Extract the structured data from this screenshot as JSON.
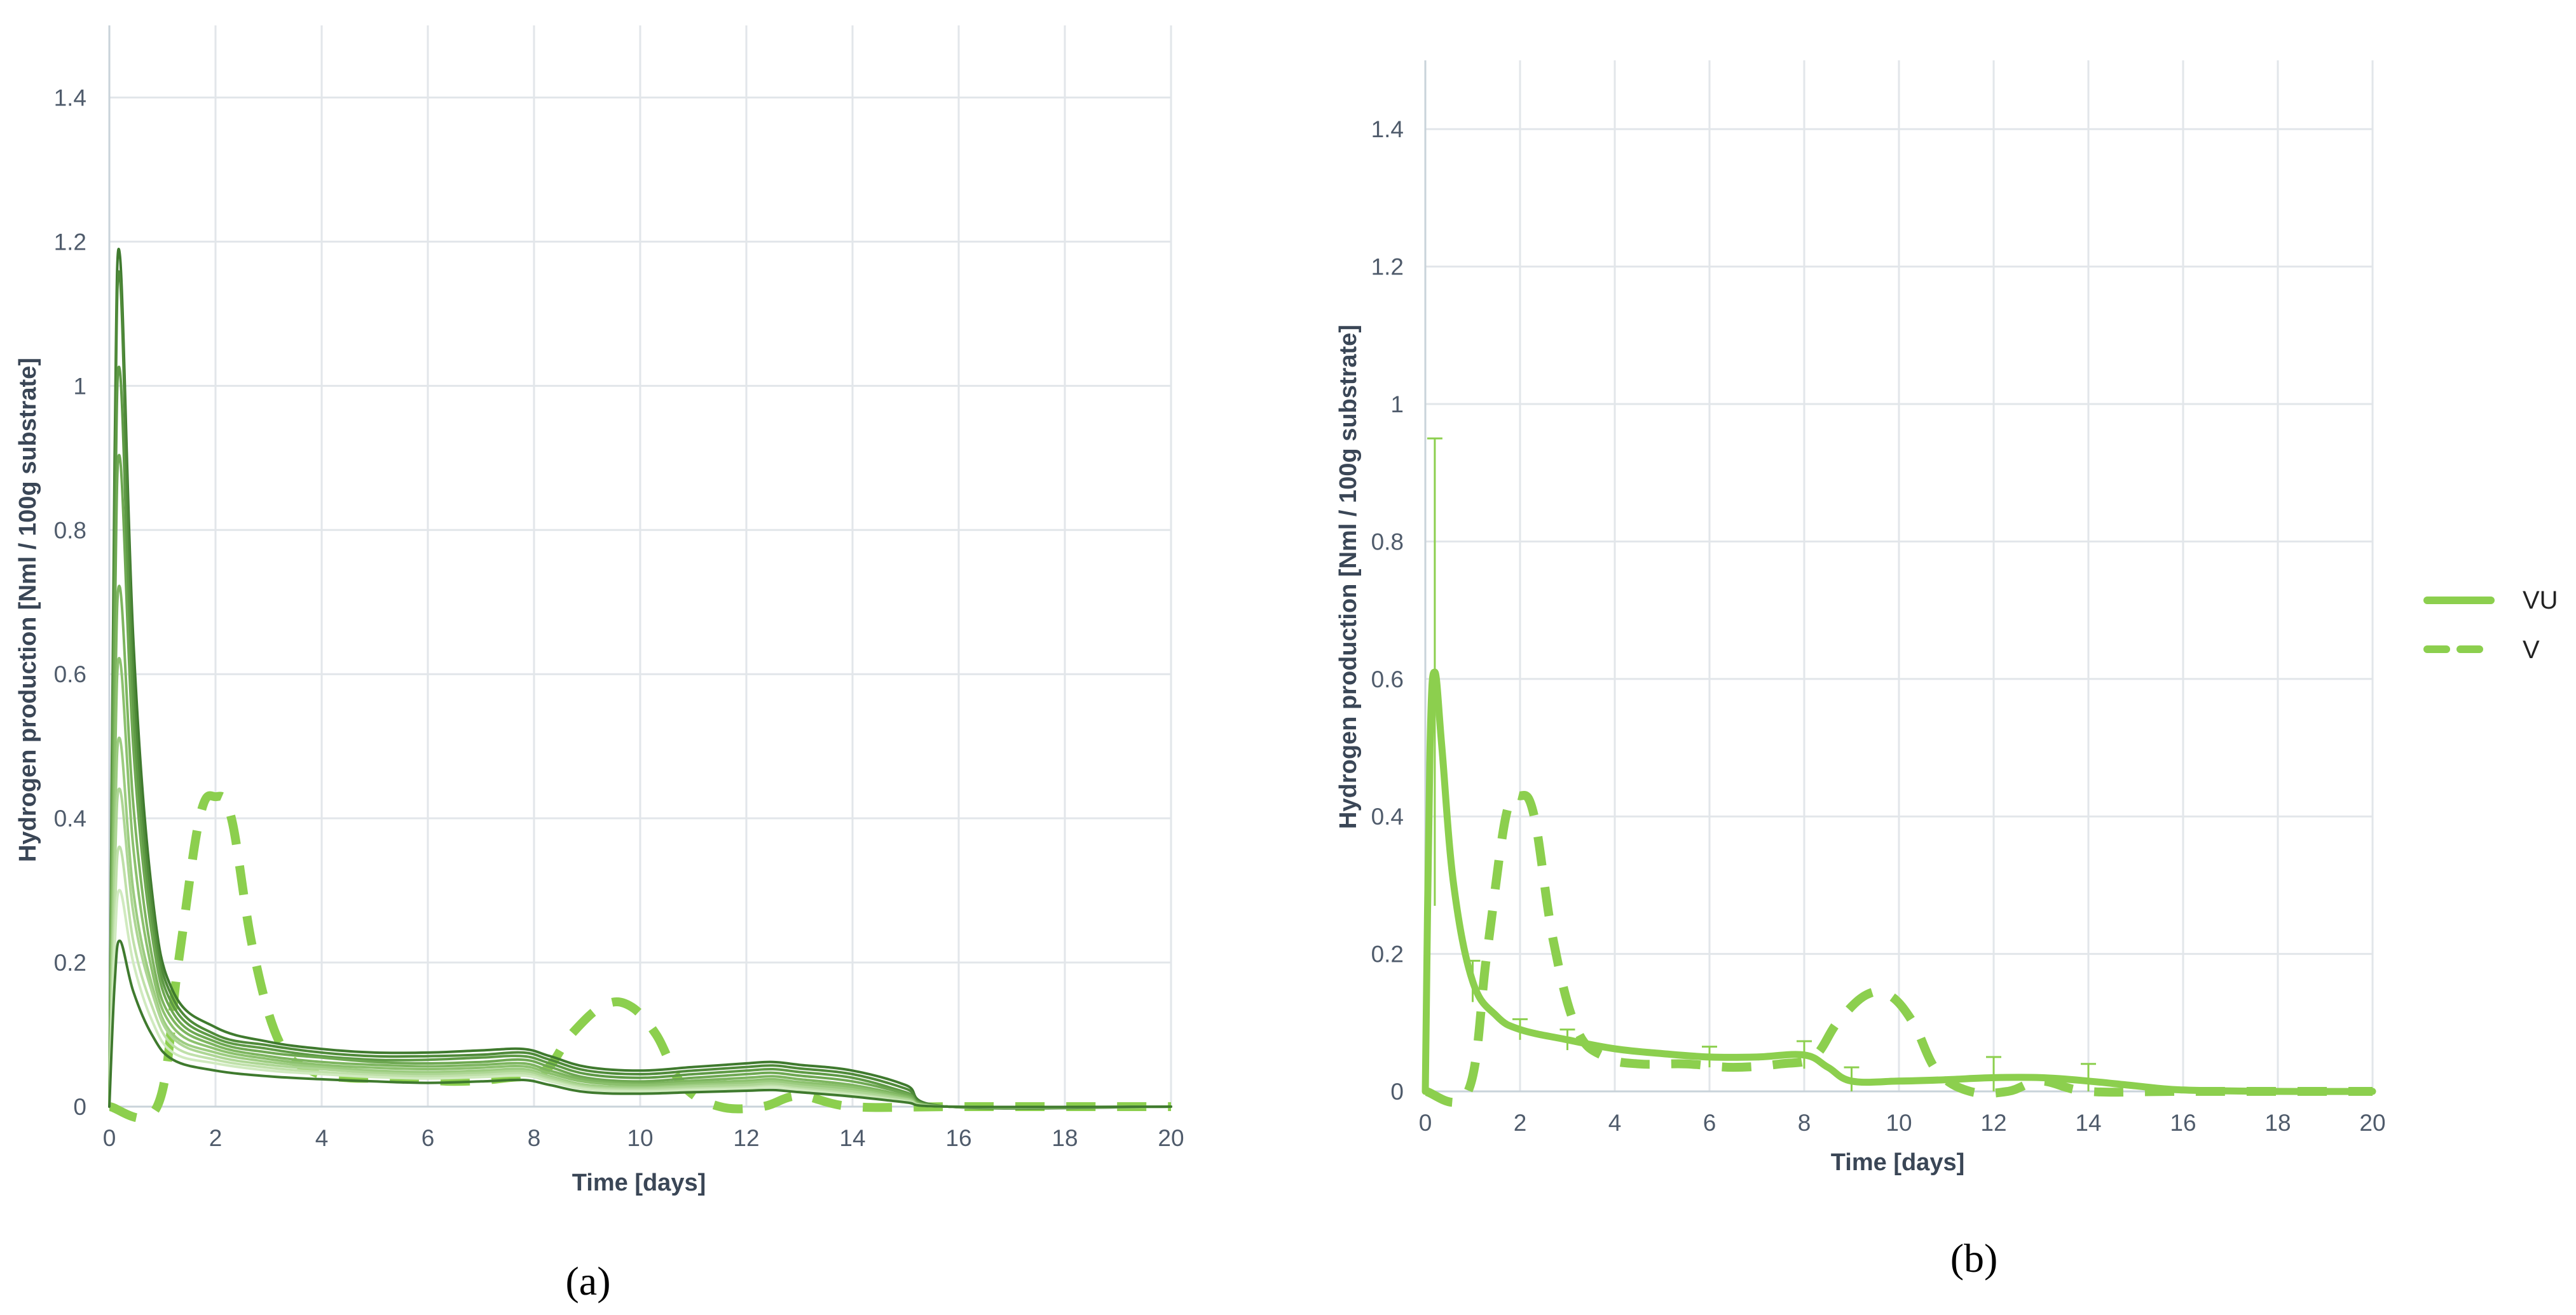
{
  "colors": {
    "accent": "#8ccf4e",
    "grid": "#e2e6ea",
    "axis": "#c9d3da",
    "tick_text": "#4f5b6b",
    "title_text": "#3a4656",
    "individual_series_shades": [
      "#3f7a2e",
      "#4f8a39",
      "#5e9a45",
      "#6ea852",
      "#7db55f",
      "#8cc16e",
      "#9ccc80",
      "#add694",
      "#bfe0a9",
      "#d0eabf"
    ]
  },
  "chart_data": [
    {
      "panel_label": "(a)",
      "type": "line",
      "title": "",
      "xlabel": "Time [days]",
      "ylabel": "Hydrogen production [Nml / 100g substrate]",
      "xlim": [
        0,
        20
      ],
      "ylim": [
        0,
        1.5
      ],
      "x_ticks": [
        0,
        2,
        4,
        6,
        8,
        10,
        12,
        14,
        16,
        18,
        20
      ],
      "y_ticks": [
        0,
        0.2,
        0.4,
        0.6,
        0.8,
        1,
        1.2,
        1.4
      ],
      "x_tick_labels": [
        "0",
        "2",
        "4",
        "6",
        "8",
        "10",
        "12",
        "14",
        "16",
        "18",
        "20"
      ],
      "y_tick_labels": [
        "0",
        "0.2",
        "0.4",
        "0.6",
        "0.8",
        "1",
        "1.2",
        "1.4"
      ],
      "grid": true,
      "series": [
        {
          "style": "dashed",
          "color": "#8ccf4e",
          "x": [
            0,
            0.9,
            1.3,
            1.7,
            2.0,
            2.3,
            2.7,
            3.2,
            3.8,
            4.5,
            5.5,
            6.5,
            7.5,
            8.2,
            8.7,
            9.3,
            9.8,
            10.3,
            10.8,
            11.5,
            12.3,
            13,
            14,
            16,
            20
          ],
          "y": [
            0,
            0,
            0.2,
            0.4,
            0.43,
            0.4,
            0.22,
            0.09,
            0.05,
            0.04,
            0.04,
            0.035,
            0.04,
            0.05,
            0.1,
            0.14,
            0.14,
            0.1,
            0.03,
            0,
            0,
            0.015,
            0,
            0,
            0
          ]
        },
        {
          "x": [
            0,
            0.1,
            0.2,
            0.45,
            0.8,
            1.2,
            2,
            3,
            4,
            5,
            6,
            7,
            7.8,
            8.3,
            9,
            10,
            11,
            12,
            12.5,
            13,
            14,
            15,
            15.8,
            20
          ],
          "y": [
            0,
            0.9,
            1.18,
            0.65,
            0.3,
            0.16,
            0.11,
            0.09,
            0.08,
            0.075,
            0.075,
            0.078,
            0.08,
            0.07,
            0.055,
            0.05,
            0.055,
            0.06,
            0.062,
            0.058,
            0.05,
            0.03,
            0,
            0
          ]
        },
        {
          "x": [
            0,
            0.1,
            0.2,
            0.45,
            0.8,
            1.2,
            2,
            3,
            4,
            5,
            6,
            7,
            7.8,
            8.3,
            9,
            10,
            11,
            12,
            12.5,
            13,
            14,
            15,
            15.8,
            20
          ],
          "y": [
            0,
            0.85,
            1.15,
            0.6,
            0.28,
            0.15,
            0.1,
            0.085,
            0.075,
            0.07,
            0.07,
            0.072,
            0.075,
            0.065,
            0.05,
            0.045,
            0.05,
            0.055,
            0.057,
            0.053,
            0.045,
            0.025,
            0,
            0
          ]
        },
        {
          "x": [
            0,
            0.1,
            0.2,
            0.45,
            0.8,
            1.2,
            2,
            3,
            4,
            5,
            6,
            7,
            7.8,
            8.3,
            9,
            10,
            11,
            12,
            12.5,
            13,
            14,
            15,
            15.8,
            20
          ],
          "y": [
            0,
            0.75,
            1.02,
            0.55,
            0.26,
            0.14,
            0.095,
            0.08,
            0.07,
            0.065,
            0.065,
            0.068,
            0.07,
            0.06,
            0.045,
            0.04,
            0.045,
            0.05,
            0.052,
            0.048,
            0.04,
            0.02,
            0,
            0
          ]
        },
        {
          "x": [
            0,
            0.1,
            0.2,
            0.45,
            0.8,
            1.2,
            2,
            3,
            4,
            5,
            6,
            7,
            7.8,
            8.3,
            9,
            10,
            11,
            12,
            12.5,
            13,
            14,
            15,
            15.8,
            20
          ],
          "y": [
            0,
            0.65,
            0.9,
            0.5,
            0.24,
            0.13,
            0.09,
            0.075,
            0.068,
            0.062,
            0.06,
            0.062,
            0.065,
            0.055,
            0.04,
            0.035,
            0.04,
            0.045,
            0.047,
            0.043,
            0.035,
            0.018,
            0,
            0
          ]
        },
        {
          "x": [
            0,
            0.1,
            0.2,
            0.45,
            0.8,
            1.2,
            2,
            3,
            4,
            5,
            6,
            7,
            7.8,
            8.3,
            9,
            10,
            11,
            12,
            12.5,
            13,
            14,
            15,
            15.8,
            20
          ],
          "y": [
            0,
            0.52,
            0.72,
            0.42,
            0.21,
            0.12,
            0.085,
            0.07,
            0.062,
            0.058,
            0.056,
            0.058,
            0.06,
            0.05,
            0.037,
            0.032,
            0.036,
            0.04,
            0.042,
            0.038,
            0.03,
            0.015,
            0,
            0
          ]
        },
        {
          "x": [
            0,
            0.1,
            0.2,
            0.45,
            0.8,
            1.2,
            2,
            3,
            4,
            5,
            6,
            7,
            7.8,
            8.3,
            9,
            10,
            11,
            12,
            12.5,
            13,
            14,
            15,
            15.8,
            20
          ],
          "y": [
            0,
            0.45,
            0.62,
            0.36,
            0.19,
            0.11,
            0.08,
            0.066,
            0.058,
            0.054,
            0.052,
            0.054,
            0.056,
            0.046,
            0.034,
            0.03,
            0.033,
            0.036,
            0.038,
            0.034,
            0.027,
            0.013,
            0,
            0
          ]
        },
        {
          "x": [
            0,
            0.1,
            0.2,
            0.45,
            0.8,
            1.2,
            2,
            3,
            4,
            5,
            6,
            7,
            7.8,
            8.3,
            9,
            10,
            11,
            12,
            12.5,
            13,
            14,
            15,
            15.8,
            20
          ],
          "y": [
            0,
            0.37,
            0.51,
            0.3,
            0.17,
            0.1,
            0.075,
            0.062,
            0.055,
            0.05,
            0.048,
            0.05,
            0.052,
            0.042,
            0.03,
            0.027,
            0.03,
            0.033,
            0.035,
            0.031,
            0.024,
            0.011,
            0,
            0
          ]
        },
        {
          "x": [
            0,
            0.1,
            0.2,
            0.45,
            0.8,
            1.2,
            2,
            3,
            4,
            5,
            6,
            7,
            7.8,
            8.3,
            9,
            10,
            11,
            12,
            12.5,
            13,
            14,
            15,
            15.8,
            20
          ],
          "y": [
            0,
            0.32,
            0.44,
            0.27,
            0.16,
            0.095,
            0.07,
            0.058,
            0.052,
            0.047,
            0.045,
            0.047,
            0.049,
            0.04,
            0.028,
            0.025,
            0.028,
            0.03,
            0.032,
            0.028,
            0.021,
            0.01,
            0,
            0
          ]
        },
        {
          "x": [
            0,
            0.1,
            0.2,
            0.45,
            0.8,
            1.2,
            2,
            3,
            4,
            5,
            6,
            7,
            7.8,
            8.3,
            9,
            10,
            11,
            12,
            12.5,
            13,
            14,
            15,
            15.8,
            20
          ],
          "y": [
            0,
            0.26,
            0.36,
            0.23,
            0.14,
            0.085,
            0.065,
            0.054,
            0.048,
            0.044,
            0.042,
            0.044,
            0.046,
            0.037,
            0.026,
            0.023,
            0.025,
            0.027,
            0.029,
            0.025,
            0.018,
            0.008,
            0,
            0
          ]
        },
        {
          "x": [
            0,
            0.1,
            0.2,
            0.45,
            0.8,
            1.2,
            2,
            3,
            4,
            5,
            6,
            7,
            7.8,
            8.3,
            9,
            10,
            11,
            12,
            12.5,
            13,
            14,
            15,
            15.8,
            20
          ],
          "y": [
            0,
            0.22,
            0.3,
            0.2,
            0.12,
            0.075,
            0.06,
            0.05,
            0.045,
            0.041,
            0.039,
            0.041,
            0.043,
            0.035,
            0.024,
            0.021,
            0.023,
            0.025,
            0.027,
            0.023,
            0.016,
            0.007,
            0,
            0
          ]
        },
        {
          "x": [
            0,
            0.1,
            0.2,
            0.45,
            0.8,
            1.2,
            2,
            3,
            4,
            5,
            6,
            7,
            7.8,
            8.3,
            9,
            10,
            11,
            12,
            12.5,
            13,
            14,
            15,
            15.8,
            20
          ],
          "y": [
            0,
            0.17,
            0.23,
            0.16,
            0.1,
            0.065,
            0.05,
            0.042,
            0.038,
            0.035,
            0.033,
            0.035,
            0.037,
            0.03,
            0.02,
            0.018,
            0.02,
            0.022,
            0.023,
            0.02,
            0.014,
            0.006,
            0,
            0
          ]
        }
      ]
    },
    {
      "panel_label": "(b)",
      "type": "line",
      "title": "",
      "xlabel": "Time [days]",
      "ylabel": "Hydrogen production [Nml / 100g substrate]",
      "xlim": [
        0,
        20
      ],
      "ylim": [
        0,
        1.5
      ],
      "x_ticks": [
        0,
        2,
        4,
        6,
        8,
        10,
        12,
        14,
        16,
        18,
        20
      ],
      "y_ticks": [
        0,
        0.2,
        0.4,
        0.6,
        0.8,
        1,
        1.2,
        1.4
      ],
      "x_tick_labels": [
        "0",
        "2",
        "4",
        "6",
        "8",
        "10",
        "12",
        "14",
        "16",
        "18",
        "20"
      ],
      "y_tick_labels": [
        "0",
        "0.2",
        "0.4",
        "0.6",
        "0.8",
        "1",
        "1.2",
        "1.4"
      ],
      "grid": true,
      "legend": "right",
      "series": [
        {
          "name": "VU",
          "style": "solid",
          "color": "#8ccf4e",
          "x": [
            0,
            0.1,
            0.2,
            0.35,
            0.6,
            1.0,
            1.5,
            2,
            3,
            4,
            5,
            6,
            7,
            8,
            8.5,
            9,
            10,
            11,
            12,
            13,
            14,
            15,
            16,
            18,
            20
          ],
          "y": [
            0,
            0.5,
            0.61,
            0.5,
            0.3,
            0.16,
            0.11,
            0.09,
            0.075,
            0.062,
            0.055,
            0.05,
            0.05,
            0.053,
            0.035,
            0.015,
            0.015,
            0.017,
            0.02,
            0.02,
            0.015,
            0.008,
            0.002,
            0,
            0
          ],
          "error_x": [
            0.2,
            1,
            2,
            3,
            6,
            8,
            9,
            12,
            14
          ],
          "error_y": [
            0.34,
            0.03,
            0.015,
            0.015,
            0.015,
            0.02,
            0.02,
            0.03,
            0.025
          ]
        },
        {
          "name": "V",
          "style": "dashed",
          "color": "#8ccf4e",
          "x": [
            0,
            0.9,
            1.3,
            1.7,
            2.0,
            2.3,
            2.7,
            3.2,
            3.8,
            4.5,
            5.5,
            6.5,
            7.5,
            8.2,
            8.7,
            9.3,
            9.8,
            10.3,
            10.8,
            11.5,
            12.3,
            13,
            14,
            16,
            20
          ],
          "y": [
            0,
            0,
            0.2,
            0.4,
            0.43,
            0.4,
            0.22,
            0.09,
            0.05,
            0.04,
            0.04,
            0.035,
            0.04,
            0.05,
            0.1,
            0.14,
            0.14,
            0.1,
            0.03,
            0,
            0,
            0.015,
            0,
            0,
            0
          ]
        }
      ]
    }
  ]
}
